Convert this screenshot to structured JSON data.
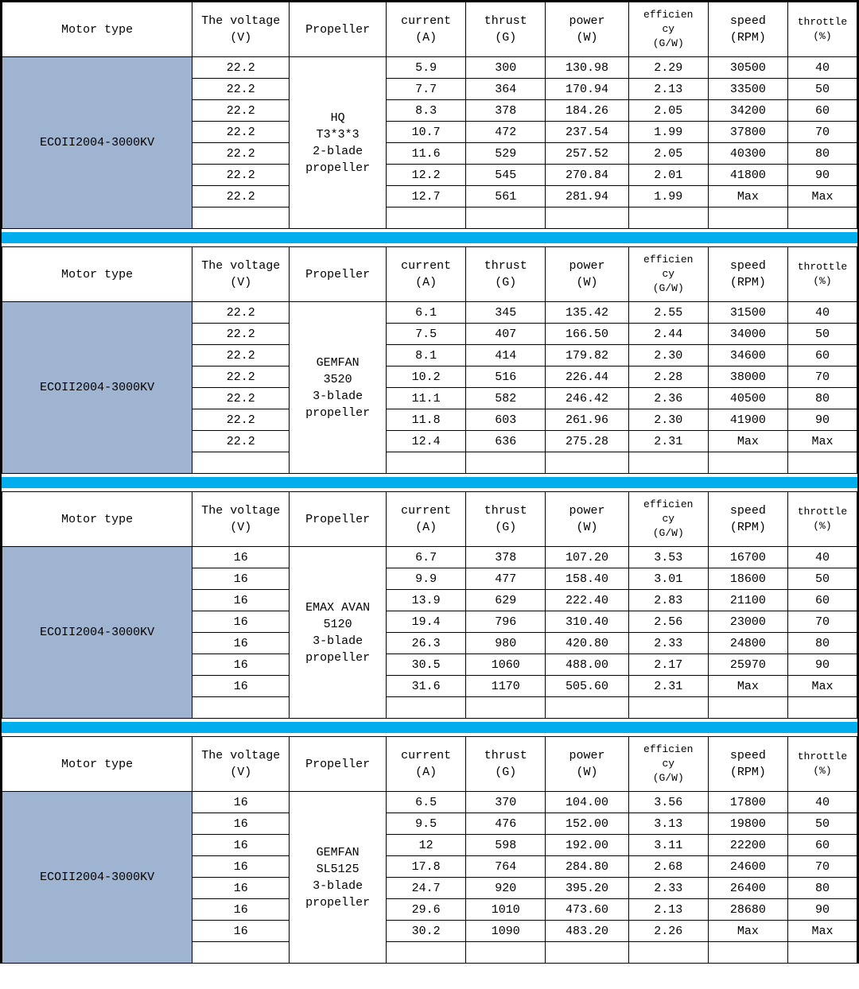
{
  "colors": {
    "motor_bg": "#9fb4d1",
    "separator": "#00aeee",
    "border": "#000000",
    "page_bg": "#ffffff"
  },
  "headers": {
    "motor": "Motor type",
    "voltage": "The voltage\n(V)",
    "propeller": "Propeller",
    "current": "current\n(A)",
    "thrust": "thrust\n(G)",
    "power": "power\n(W)",
    "efficiency": "efficien\ncy\n(G/W)",
    "speed": "speed\n(RPM)",
    "throttle": "throttle\n(%)"
  },
  "sections": [
    {
      "motor": "ECOII2004-3000KV",
      "propeller": "HQ\nT3*3*3\n2-blade\npropeller",
      "rows": [
        {
          "v": "22.2",
          "a": "5.9",
          "g": "300",
          "w": "130.98",
          "eff": "2.29",
          "rpm": "30500",
          "thr": "40"
        },
        {
          "v": "22.2",
          "a": "7.7",
          "g": "364",
          "w": "170.94",
          "eff": "2.13",
          "rpm": "33500",
          "thr": "50"
        },
        {
          "v": "22.2",
          "a": "8.3",
          "g": "378",
          "w": "184.26",
          "eff": "2.05",
          "rpm": "34200",
          "thr": "60"
        },
        {
          "v": "22.2",
          "a": "10.7",
          "g": "472",
          "w": "237.54",
          "eff": "1.99",
          "rpm": "37800",
          "thr": "70"
        },
        {
          "v": "22.2",
          "a": "11.6",
          "g": "529",
          "w": "257.52",
          "eff": "2.05",
          "rpm": "40300",
          "thr": "80"
        },
        {
          "v": "22.2",
          "a": "12.2",
          "g": "545",
          "w": "270.84",
          "eff": "2.01",
          "rpm": "41800",
          "thr": "90"
        },
        {
          "v": "22.2",
          "a": "12.7",
          "g": "561",
          "w": "281.94",
          "eff": "1.99",
          "rpm": "Max",
          "thr": "Max"
        }
      ]
    },
    {
      "motor": "ECOII2004-3000KV",
      "propeller": "GEMFAN\n3520\n3-blade\npropeller",
      "rows": [
        {
          "v": "22.2",
          "a": "6.1",
          "g": "345",
          "w": "135.42",
          "eff": "2.55",
          "rpm": "31500",
          "thr": "40"
        },
        {
          "v": "22.2",
          "a": "7.5",
          "g": "407",
          "w": "166.50",
          "eff": "2.44",
          "rpm": "34000",
          "thr": "50"
        },
        {
          "v": "22.2",
          "a": "8.1",
          "g": "414",
          "w": "179.82",
          "eff": "2.30",
          "rpm": "34600",
          "thr": "60"
        },
        {
          "v": "22.2",
          "a": "10.2",
          "g": "516",
          "w": "226.44",
          "eff": "2.28",
          "rpm": "38000",
          "thr": "70"
        },
        {
          "v": "22.2",
          "a": "11.1",
          "g": "582",
          "w": "246.42",
          "eff": "2.36",
          "rpm": "40500",
          "thr": "80"
        },
        {
          "v": "22.2",
          "a": "11.8",
          "g": "603",
          "w": "261.96",
          "eff": "2.30",
          "rpm": "41900",
          "thr": "90"
        },
        {
          "v": "22.2",
          "a": "12.4",
          "g": "636",
          "w": "275.28",
          "eff": "2.31",
          "rpm": "Max",
          "thr": "Max"
        }
      ]
    },
    {
      "motor": "ECOII2004-3000KV",
      "propeller": "EMAX AVAN\n5120\n3-blade\npropeller",
      "rows": [
        {
          "v": "16",
          "a": "6.7",
          "g": "378",
          "w": "107.20",
          "eff": "3.53",
          "rpm": "16700",
          "thr": "40"
        },
        {
          "v": "16",
          "a": "9.9",
          "g": "477",
          "w": "158.40",
          "eff": "3.01",
          "rpm": "18600",
          "thr": "50"
        },
        {
          "v": "16",
          "a": "13.9",
          "g": "629",
          "w": "222.40",
          "eff": "2.83",
          "rpm": "21100",
          "thr": "60"
        },
        {
          "v": "16",
          "a": "19.4",
          "g": "796",
          "w": "310.40",
          "eff": "2.56",
          "rpm": "23000",
          "thr": "70"
        },
        {
          "v": "16",
          "a": "26.3",
          "g": "980",
          "w": "420.80",
          "eff": "2.33",
          "rpm": "24800",
          "thr": "80"
        },
        {
          "v": "16",
          "a": "30.5",
          "g": "1060",
          "w": "488.00",
          "eff": "2.17",
          "rpm": "25970",
          "thr": "90"
        },
        {
          "v": "16",
          "a": "31.6",
          "g": "1170",
          "w": "505.60",
          "eff": "2.31",
          "rpm": "Max",
          "thr": "Max"
        }
      ]
    },
    {
      "motor": "ECOII2004-3000KV",
      "propeller": "GEMFAN\nSL5125\n3-blade\npropeller",
      "rows": [
        {
          "v": "16",
          "a": "6.5",
          "g": "370",
          "w": "104.00",
          "eff": "3.56",
          "rpm": "17800",
          "thr": "40"
        },
        {
          "v": "16",
          "a": "9.5",
          "g": "476",
          "w": "152.00",
          "eff": "3.13",
          "rpm": "19800",
          "thr": "50"
        },
        {
          "v": "16",
          "a": "12",
          "g": "598",
          "w": "192.00",
          "eff": "3.11",
          "rpm": "22200",
          "thr": "60"
        },
        {
          "v": "16",
          "a": "17.8",
          "g": "764",
          "w": "284.80",
          "eff": "2.68",
          "rpm": "24600",
          "thr": "70"
        },
        {
          "v": "16",
          "a": "24.7",
          "g": "920",
          "w": "395.20",
          "eff": "2.33",
          "rpm": "26400",
          "thr": "80"
        },
        {
          "v": "16",
          "a": "29.6",
          "g": "1010",
          "w": "473.60",
          "eff": "2.13",
          "rpm": "28680",
          "thr": "90"
        },
        {
          "v": "16",
          "a": "30.2",
          "g": "1090",
          "w": "483.20",
          "eff": "2.26",
          "rpm": "Max",
          "thr": "Max"
        }
      ]
    }
  ]
}
